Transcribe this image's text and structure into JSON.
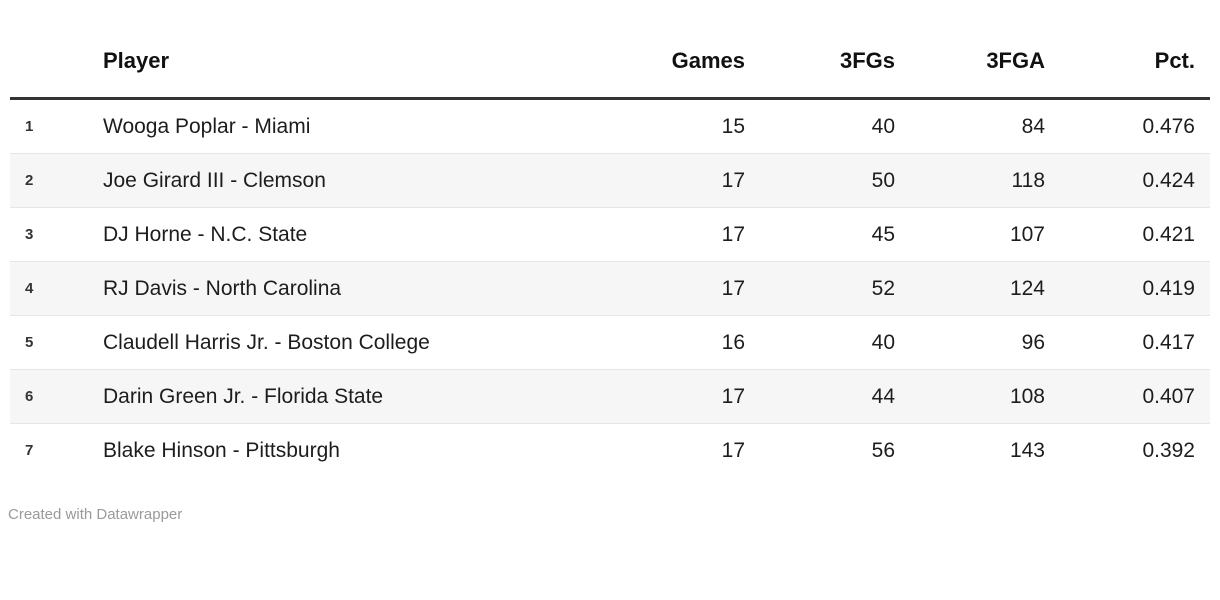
{
  "chart_data": {
    "type": "table",
    "columns": [
      "",
      "Player",
      "Games",
      "3FGs",
      "3FGA",
      "Pct."
    ],
    "rows": [
      [
        "1",
        "Wooga Poplar - Miami",
        15,
        40,
        84,
        0.476
      ],
      [
        "2",
        "Joe Girard III - Clemson",
        17,
        50,
        118,
        0.424
      ],
      [
        "3",
        "DJ Horne - N.C. State",
        17,
        45,
        107,
        0.421
      ],
      [
        "4",
        "RJ Davis - North Carolina",
        17,
        52,
        124,
        0.419
      ],
      [
        "5",
        "Claudell Harris Jr. - Boston College",
        16,
        40,
        96,
        0.417
      ],
      [
        "6",
        "Darin Green Jr. - Florida State",
        17,
        44,
        108,
        0.407
      ],
      [
        "7",
        "Blake Hinson - Pittsburgh",
        17,
        56,
        143,
        0.392
      ]
    ],
    "footer": "Created with Datawrapper",
    "layout_hints": {
      "zebra_striping": true,
      "numeric_columns_right_aligned": true
    }
  },
  "table": {
    "headers": [
      "",
      "Player",
      "Games",
      "3FGs",
      "3FGA",
      "Pct."
    ],
    "rows": [
      {
        "rank": "1",
        "player": "Wooga Poplar - Miami",
        "games": "15",
        "fg3": "40",
        "fga3": "84",
        "pct": "0.476"
      },
      {
        "rank": "2",
        "player": "Joe Girard III - Clemson",
        "games": "17",
        "fg3": "50",
        "fga3": "118",
        "pct": "0.424"
      },
      {
        "rank": "3",
        "player": "DJ Horne - N.C. State",
        "games": "17",
        "fg3": "45",
        "fga3": "107",
        "pct": "0.421"
      },
      {
        "rank": "4",
        "player": "RJ Davis - North Carolina",
        "games": "17",
        "fg3": "52",
        "fga3": "124",
        "pct": "0.419"
      },
      {
        "rank": "5",
        "player": "Claudell Harris Jr. - Boston College",
        "games": "16",
        "fg3": "40",
        "fga3": "96",
        "pct": "0.417"
      },
      {
        "rank": "6",
        "player": "Darin Green Jr. - Florida State",
        "games": "17",
        "fg3": "44",
        "fga3": "108",
        "pct": "0.407"
      },
      {
        "rank": "7",
        "player": "Blake Hinson - Pittsburgh",
        "games": "17",
        "fg3": "56",
        "fga3": "143",
        "pct": "0.392"
      }
    ]
  },
  "footer": {
    "credit": "Created with Datawrapper"
  },
  "colors": {
    "header_rule": "#333333",
    "row_stripe": "#f6f6f6",
    "row_border": "#e6e6e6",
    "text": "#1d1d1d",
    "credit_text": "#9a9a9a"
  }
}
